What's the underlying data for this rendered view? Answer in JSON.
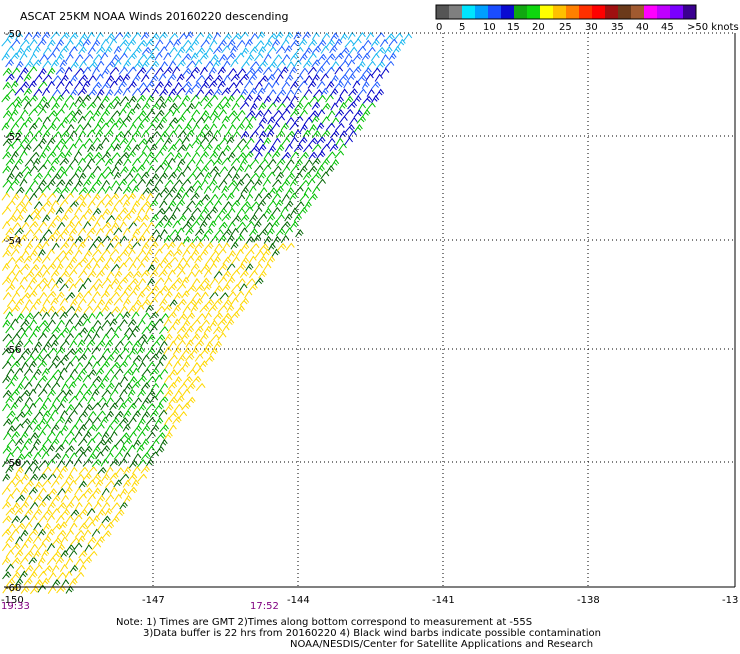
{
  "title": "ASCAT 25KM NOAA Winds 20160220 descending",
  "legend": {
    "colors": [
      "#555555",
      "#7f7f7f",
      "#00e5ff",
      "#00a0ff",
      "#1a4dff",
      "#0a0ad0",
      "#11a811",
      "#0ed60e",
      "#ffff00",
      "#ffc000",
      "#ff8000",
      "#ff3000",
      "#ff0000",
      "#a01010",
      "#6b3a1a",
      "#a05a30",
      "#ff00ff",
      "#c000ff",
      "#7a00ff",
      "#3a0090"
    ],
    "labels": [
      "0",
      "5",
      "10",
      "15",
      "20",
      "25",
      "30",
      "35",
      "40",
      "45",
      ">50 knots"
    ]
  },
  "axes": {
    "lat_labels": [
      "-50",
      "-52",
      "-54",
      "-56",
      "-58",
      "-60"
    ],
    "lon_labels": [
      "-150",
      "-147",
      "-144",
      "-141",
      "-138",
      "-13"
    ]
  },
  "times": [
    "19:33",
    "17:52"
  ],
  "notes": [
    "Note: 1) Times are GMT 2)Times along bottom correspond to measurement at -55S",
    "3)Data buffer is 22 hrs from 20160220 4) Black wind barbs indicate possible contamination",
    "NOAA/NESDIS/Center for Satellite Applications and Research"
  ],
  "wind_colors": {
    "lt_blue": "#17b7f0",
    "blue": "#1f5cff",
    "dk_blue": "#0000c8",
    "green": "#00c000",
    "dk_green": "#006400",
    "yellow": "#ffd800"
  },
  "grid_color": "#000000"
}
